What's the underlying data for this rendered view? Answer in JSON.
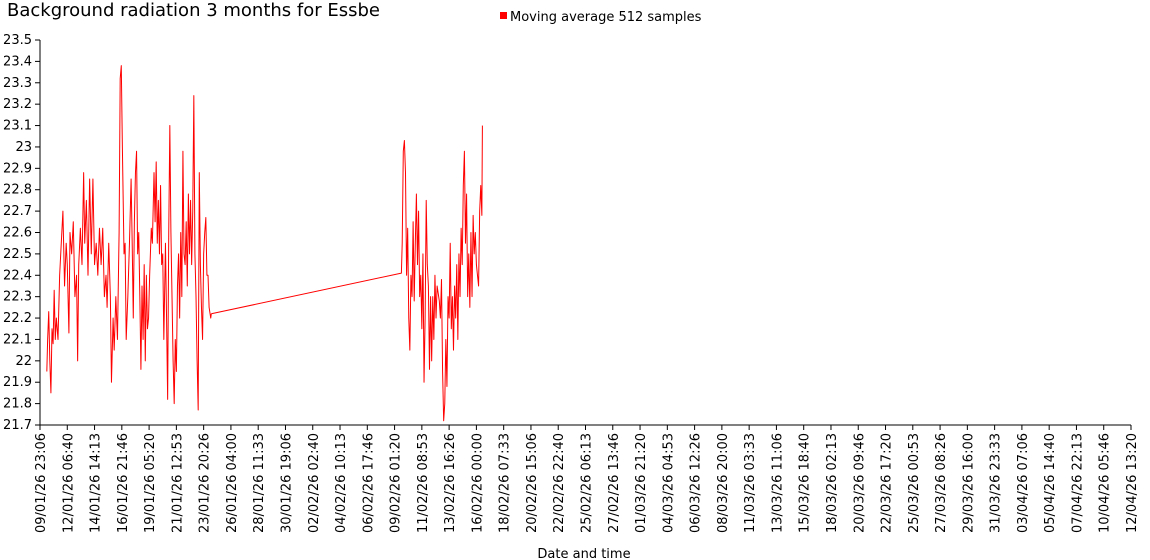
{
  "chart_data": {
    "type": "line",
    "title": "Background radiation 3 months for Essbe",
    "xlabel": "Date and time",
    "ylabel": "",
    "ylim": [
      21.7,
      23.5
    ],
    "yticks": [
      "21.7",
      "21.8",
      "21.9",
      "22",
      "22.1",
      "22.2",
      "22.3",
      "22.4",
      "22.5",
      "22.6",
      "22.7",
      "22.8",
      "22.9",
      "23",
      "23.1",
      "23.2",
      "23.3",
      "23.4",
      "23.5"
    ],
    "xticks": [
      "09/01/26 23:06",
      "12/01/26 06:40",
      "14/01/26 14:13",
      "16/01/26 21:46",
      "19/01/26 05:20",
      "21/01/26 12:53",
      "23/01/26 20:26",
      "26/01/26 04:00",
      "28/01/26 11:33",
      "30/01/26 19:06",
      "02/02/26 02:40",
      "04/02/26 10:13",
      "06/02/26 17:46",
      "09/02/26 01:20",
      "11/02/26 08:53",
      "13/02/26 16:26",
      "16/02/26 00:00",
      "18/02/26 07:33",
      "20/02/26 15:06",
      "22/02/26 22:40",
      "25/02/26 06:13",
      "27/02/26 13:46",
      "01/03/26 21:20",
      "04/03/26 04:53",
      "06/03/26 12:26",
      "08/03/26 20:00",
      "11/03/26 03:33",
      "13/03/26 11:06",
      "15/03/26 18:40",
      "18/03/26 02:13",
      "20/03/26 09:46",
      "22/03/26 17:20",
      "25/03/26 00:53",
      "27/03/26 08:26",
      "29/03/26 16:00",
      "31/03/26 23:33",
      "03/04/26 07:06",
      "05/04/26 14:40",
      "07/04/26 22:13",
      "10/04/26 05:46",
      "12/04/26 13:20"
    ],
    "grid": false,
    "legend_position": "top-center",
    "series": [
      {
        "name": "Moving average 512 samples",
        "color": "#ff0000",
        "points_tick_units": [
          [
            0.25,
            21.95
          ],
          [
            0.28,
            22.1
          ],
          [
            0.32,
            22.23
          ],
          [
            0.36,
            22.0
          ],
          [
            0.4,
            21.85
          ],
          [
            0.44,
            22.15
          ],
          [
            0.48,
            22.08
          ],
          [
            0.52,
            22.33
          ],
          [
            0.56,
            22.1
          ],
          [
            0.6,
            22.2
          ],
          [
            0.66,
            22.1
          ],
          [
            0.72,
            22.4
          ],
          [
            0.78,
            22.55
          ],
          [
            0.84,
            22.7
          ],
          [
            0.9,
            22.35
          ],
          [
            0.96,
            22.55
          ],
          [
            1.0,
            22.45
          ],
          [
            1.06,
            22.13
          ],
          [
            1.1,
            22.6
          ],
          [
            1.16,
            22.5
          ],
          [
            1.22,
            22.65
          ],
          [
            1.28,
            22.3
          ],
          [
            1.34,
            22.4
          ],
          [
            1.38,
            22.0
          ],
          [
            1.42,
            22.45
          ],
          [
            1.48,
            22.62
          ],
          [
            1.54,
            22.45
          ],
          [
            1.6,
            22.88
          ],
          [
            1.64,
            22.55
          ],
          [
            1.7,
            22.75
          ],
          [
            1.76,
            22.4
          ],
          [
            1.82,
            22.85
          ],
          [
            1.88,
            22.5
          ],
          [
            1.94,
            22.85
          ],
          [
            2.0,
            22.45
          ],
          [
            2.06,
            22.55
          ],
          [
            2.12,
            22.4
          ],
          [
            2.18,
            22.62
          ],
          [
            2.24,
            22.45
          ],
          [
            2.3,
            22.62
          ],
          [
            2.36,
            22.3
          ],
          [
            2.42,
            22.4
          ],
          [
            2.46,
            22.25
          ],
          [
            2.52,
            22.55
          ],
          [
            2.58,
            22.3
          ],
          [
            2.62,
            21.9
          ],
          [
            2.68,
            22.2
          ],
          [
            2.72,
            22.05
          ],
          [
            2.78,
            22.3
          ],
          [
            2.84,
            22.1
          ],
          [
            2.9,
            22.6
          ],
          [
            2.94,
            23.32
          ],
          [
            2.98,
            23.38
          ],
          [
            3.02,
            23.0
          ],
          [
            3.08,
            22.5
          ],
          [
            3.12,
            22.55
          ],
          [
            3.16,
            22.1
          ],
          [
            3.22,
            22.3
          ],
          [
            3.28,
            22.55
          ],
          [
            3.34,
            22.85
          ],
          [
            3.38,
            22.55
          ],
          [
            3.42,
            22.2
          ],
          [
            3.46,
            22.65
          ],
          [
            3.5,
            22.88
          ],
          [
            3.54,
            22.98
          ],
          [
            3.58,
            22.5
          ],
          [
            3.62,
            22.6
          ],
          [
            3.66,
            22.3
          ],
          [
            3.7,
            21.96
          ],
          [
            3.74,
            22.35
          ],
          [
            3.78,
            22.1
          ],
          [
            3.82,
            22.45
          ],
          [
            3.86,
            22.0
          ],
          [
            3.9,
            22.4
          ],
          [
            3.94,
            22.15
          ],
          [
            3.98,
            22.2
          ],
          [
            4.02,
            22.4
          ],
          [
            4.08,
            22.62
          ],
          [
            4.12,
            22.55
          ],
          [
            4.18,
            22.88
          ],
          [
            4.22,
            22.65
          ],
          [
            4.26,
            22.93
          ],
          [
            4.3,
            22.55
          ],
          [
            4.34,
            22.75
          ],
          [
            4.38,
            22.5
          ],
          [
            4.42,
            22.82
          ],
          [
            4.46,
            22.45
          ],
          [
            4.5,
            22.5
          ],
          [
            4.54,
            22.1
          ],
          [
            4.6,
            22.55
          ],
          [
            4.64,
            22.2
          ],
          [
            4.68,
            21.82
          ],
          [
            4.72,
            22.6
          ],
          [
            4.76,
            23.1
          ],
          [
            4.8,
            22.6
          ],
          [
            4.84,
            22.3
          ],
          [
            4.88,
            22.0
          ],
          [
            4.92,
            21.8
          ],
          [
            4.96,
            22.1
          ],
          [
            5.0,
            21.95
          ],
          [
            5.04,
            22.35
          ],
          [
            5.08,
            22.5
          ],
          [
            5.12,
            22.2
          ],
          [
            5.16,
            22.6
          ],
          [
            5.2,
            22.3
          ],
          [
            5.24,
            22.98
          ],
          [
            5.28,
            22.5
          ],
          [
            5.32,
            22.45
          ],
          [
            5.36,
            22.65
          ],
          [
            5.4,
            22.35
          ],
          [
            5.44,
            22.78
          ],
          [
            5.48,
            22.5
          ],
          [
            5.52,
            22.75
          ],
          [
            5.56,
            22.45
          ],
          [
            5.6,
            22.7
          ],
          [
            5.64,
            23.24
          ],
          [
            5.68,
            22.5
          ],
          [
            5.72,
            22.3
          ],
          [
            5.76,
            22.0
          ],
          [
            5.8,
            21.77
          ],
          [
            5.84,
            22.88
          ],
          [
            5.88,
            22.45
          ],
          [
            5.92,
            22.25
          ],
          [
            5.96,
            22.1
          ],
          [
            6.0,
            22.5
          ],
          [
            6.04,
            22.6
          ],
          [
            6.08,
            22.67
          ],
          [
            6.12,
            22.4
          ],
          [
            6.16,
            22.4
          ],
          [
            6.2,
            22.25
          ],
          [
            6.26,
            22.2
          ],
          [
            6.28,
            22.22
          ],
          null,
          [
            6.28,
            22.22
          ],
          [
            13.25,
            22.41
          ],
          [
            13.28,
            22.55
          ],
          [
            13.32,
            22.98
          ],
          [
            13.36,
            23.03
          ],
          [
            13.4,
            22.88
          ],
          [
            13.44,
            22.4
          ],
          [
            13.48,
            22.62
          ],
          [
            13.52,
            22.2
          ],
          [
            13.56,
            22.05
          ],
          [
            13.6,
            22.4
          ],
          [
            13.64,
            22.3
          ],
          [
            13.68,
            22.65
          ],
          [
            13.72,
            22.28
          ],
          [
            13.76,
            22.55
          ],
          [
            13.8,
            22.78
          ],
          [
            13.84,
            22.45
          ],
          [
            13.88,
            22.7
          ],
          [
            13.92,
            22.3
          ],
          [
            13.96,
            22.4
          ],
          [
            14.0,
            22.15
          ],
          [
            14.04,
            22.5
          ],
          [
            14.08,
            21.9
          ],
          [
            14.12,
            22.2
          ],
          [
            14.16,
            22.75
          ],
          [
            14.2,
            22.45
          ],
          [
            14.24,
            22.35
          ],
          [
            14.28,
            21.96
          ],
          [
            14.32,
            22.3
          ],
          [
            14.36,
            22.0
          ],
          [
            14.4,
            22.3
          ],
          [
            14.44,
            22.1
          ],
          [
            14.48,
            22.4
          ],
          [
            14.52,
            22.2
          ],
          [
            14.56,
            22.35
          ],
          [
            14.64,
            22.28
          ],
          [
            14.68,
            22.2
          ],
          [
            14.72,
            22.38
          ],
          [
            14.76,
            21.95
          ],
          [
            14.8,
            21.72
          ],
          [
            14.84,
            21.8
          ],
          [
            14.88,
            22.1
          ],
          [
            14.92,
            21.88
          ],
          [
            14.96,
            22.3
          ],
          [
            15.0,
            22.2
          ],
          [
            15.04,
            22.55
          ],
          [
            15.08,
            22.15
          ],
          [
            15.12,
            22.3
          ],
          [
            15.16,
            22.05
          ],
          [
            15.2,
            22.35
          ],
          [
            15.24,
            22.2
          ],
          [
            15.28,
            22.45
          ],
          [
            15.32,
            22.1
          ],
          [
            15.36,
            22.5
          ],
          [
            15.4,
            22.3
          ],
          [
            15.44,
            22.62
          ],
          [
            15.48,
            22.45
          ],
          [
            15.52,
            22.82
          ],
          [
            15.56,
            22.98
          ],
          [
            15.6,
            22.55
          ],
          [
            15.64,
            22.78
          ],
          [
            15.68,
            22.3
          ],
          [
            15.72,
            22.5
          ],
          [
            15.76,
            22.25
          ],
          [
            15.8,
            22.6
          ],
          [
            15.84,
            22.3
          ],
          [
            15.88,
            22.68
          ],
          [
            15.92,
            22.5
          ],
          [
            15.96,
            22.6
          ],
          [
            16.0,
            22.45
          ],
          [
            16.04,
            22.4
          ],
          [
            16.08,
            22.35
          ],
          [
            16.12,
            22.7
          ],
          [
            16.16,
            22.82
          ],
          [
            16.2,
            22.68
          ],
          [
            16.22,
            23.1
          ]
        ]
      }
    ]
  }
}
